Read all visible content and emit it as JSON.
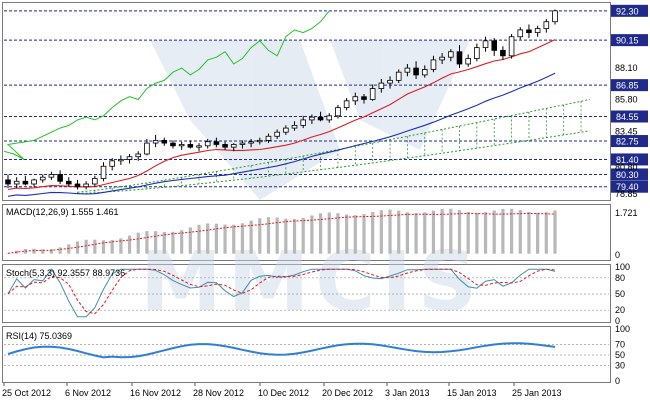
{
  "watermark": "MMCIS",
  "colors": {
    "grid_dash": "#1f2a8a",
    "badge_bg": "#1f2a8a",
    "candle_bull": "#ffffff",
    "candle_bear": "#000000",
    "ma_fast": "#e21c1c",
    "ma_slow": "#1c2fb8",
    "chikou": "#21c421",
    "cloud": "#2a9b2a",
    "macd_hist": "#b8b8b8",
    "macd_signal": "#e21c1c",
    "stoch_k": "#3a8fb0",
    "stoch_d": "#e21c1c",
    "rsi": "#2f7fd6"
  },
  "price_panel": {
    "badges": [
      "92.30",
      "90.15",
      "86.85",
      "84.55",
      "82.75",
      "81.40",
      "80.30",
      "79.40"
    ],
    "labels": [
      "88.10",
      "85.80",
      "83.45",
      "80.80",
      "78.85"
    ]
  },
  "macd": {
    "title": "MACD(12,26,9) 1.555 1.461",
    "scale_top": "1.721",
    "scale_bottom": "0"
  },
  "stoch": {
    "title": "Stoch(5,3,3) 92.3557 88.9736",
    "scale": [
      "100",
      "80",
      "50",
      "20",
      "0"
    ]
  },
  "rsi": {
    "title": "RSI(14) 75.0369",
    "scale": [
      "100",
      "70",
      "50",
      "30",
      "0"
    ]
  },
  "x_axis": [
    "25 Oct 2012",
    "6 Nov 2012",
    "16 Nov 2012",
    "28 Nov 2012",
    "10 Dec 2012",
    "20 Dec 2012",
    "3 Jan 2013",
    "15 Jan 2013",
    "25 Jan 2013"
  ],
  "chart_data": {
    "type": "line",
    "price": {
      "ohlc": [
        [
          79.9,
          80.3,
          79.3,
          79.6
        ],
        [
          79.6,
          80.1,
          79.3,
          79.8
        ],
        [
          79.8,
          80.2,
          79.5,
          79.6
        ],
        [
          79.6,
          80.0,
          79.4,
          79.9
        ],
        [
          79.9,
          80.3,
          79.7,
          80.1
        ],
        [
          80.1,
          80.5,
          79.9,
          80.3
        ],
        [
          80.3,
          80.6,
          79.6,
          79.8
        ],
        [
          79.8,
          80.1,
          79.4,
          79.6
        ],
        [
          79.6,
          79.9,
          79.2,
          79.4
        ],
        [
          79.4,
          79.8,
          79.2,
          79.6
        ],
        [
          79.6,
          80.2,
          79.4,
          80.0
        ],
        [
          80.0,
          81.2,
          79.8,
          80.9
        ],
        [
          80.9,
          81.5,
          80.6,
          81.3
        ],
        [
          81.3,
          81.7,
          81.0,
          81.4
        ],
        [
          81.4,
          81.8,
          81.1,
          81.6
        ],
        [
          81.6,
          82.0,
          81.3,
          81.8
        ],
        [
          81.8,
          82.9,
          81.7,
          82.6
        ],
        [
          82.6,
          83.2,
          82.3,
          82.8
        ],
        [
          82.8,
          83.0,
          82.4,
          82.6
        ],
        [
          82.6,
          82.8,
          82.2,
          82.4
        ],
        [
          82.4,
          82.7,
          82.1,
          82.5
        ],
        [
          82.5,
          82.8,
          82.2,
          82.3
        ],
        [
          82.3,
          82.6,
          82.0,
          82.4
        ],
        [
          82.4,
          82.9,
          82.2,
          82.7
        ],
        [
          82.7,
          83.0,
          82.3,
          82.5
        ],
        [
          82.5,
          82.7,
          82.1,
          82.3
        ],
        [
          82.3,
          82.6,
          82.0,
          82.5
        ],
        [
          82.5,
          82.8,
          82.2,
          82.6
        ],
        [
          82.6,
          82.9,
          82.3,
          82.7
        ],
        [
          82.7,
          83.0,
          82.5,
          82.8
        ],
        [
          82.8,
          83.3,
          82.6,
          83.1
        ],
        [
          83.1,
          83.6,
          82.9,
          83.4
        ],
        [
          83.4,
          83.9,
          83.2,
          83.7
        ],
        [
          83.7,
          84.2,
          83.5,
          83.9
        ],
        [
          83.9,
          84.6,
          83.7,
          84.3
        ],
        [
          84.3,
          84.7,
          84.0,
          84.5
        ],
        [
          84.5,
          84.9,
          84.2,
          84.3
        ],
        [
          84.3,
          84.8,
          84.1,
          84.6
        ],
        [
          84.6,
          85.4,
          84.4,
          85.2
        ],
        [
          85.2,
          85.9,
          85.0,
          85.7
        ],
        [
          85.7,
          86.3,
          85.4,
          86.0
        ],
        [
          86.0,
          86.2,
          85.5,
          85.8
        ],
        [
          85.8,
          86.9,
          85.7,
          86.6
        ],
        [
          86.6,
          87.3,
          86.3,
          87.0
        ],
        [
          87.0,
          87.5,
          86.6,
          87.2
        ],
        [
          87.2,
          88.0,
          87.0,
          87.8
        ],
        [
          87.8,
          88.4,
          87.5,
          88.1
        ],
        [
          88.1,
          88.6,
          87.3,
          87.6
        ],
        [
          87.6,
          88.3,
          87.4,
          88.0
        ],
        [
          88.0,
          89.0,
          87.8,
          88.7
        ],
        [
          88.7,
          89.2,
          88.4,
          88.9
        ],
        [
          88.9,
          89.5,
          88.6,
          89.3
        ],
        [
          89.3,
          89.8,
          88.1,
          88.4
        ],
        [
          88.4,
          89.1,
          88.2,
          88.8
        ],
        [
          88.8,
          89.9,
          88.6,
          89.6
        ],
        [
          89.6,
          90.4,
          89.3,
          90.1
        ],
        [
          90.1,
          90.3,
          89.0,
          89.4
        ],
        [
          89.4,
          89.7,
          88.7,
          89.0
        ],
        [
          89.0,
          90.6,
          88.8,
          90.4
        ],
        [
          90.4,
          91.1,
          90.2,
          90.9
        ],
        [
          90.9,
          91.3,
          90.3,
          90.7
        ],
        [
          90.7,
          91.2,
          90.4,
          91.0
        ],
        [
          91.0,
          91.7,
          90.7,
          91.5
        ],
        [
          91.5,
          92.4,
          91.3,
          92.3
        ]
      ],
      "ylim": [
        78.5,
        92.8
      ]
    },
    "macd_ylim": [
      -0.2,
      1.8
    ],
    "stoch_ylim": [
      0,
      100
    ],
    "rsi_ylim": [
      0,
      100
    ]
  }
}
